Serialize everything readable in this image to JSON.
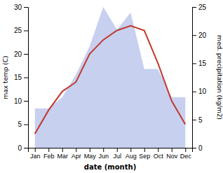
{
  "chart_data": {
    "type": "line",
    "xlabel": "date (month)",
    "ylabel": "max temp (C)",
    "y2label": "med. precipitation (kg/m2)",
    "categories": [
      "Jan",
      "Feb",
      "Mar",
      "Apr",
      "May",
      "Jun",
      "Jul",
      "Aug",
      "Sep",
      "Oct",
      "Nov",
      "Dec"
    ],
    "series": [
      {
        "type": "area",
        "axis": "y2",
        "color": "#c8d0f0",
        "values": [
          7,
          7,
          9,
          13,
          18,
          25,
          21,
          24,
          14,
          14,
          9,
          9
        ]
      },
      {
        "type": "line",
        "color": "#c0392b",
        "values": [
          3,
          8,
          12,
          14,
          20,
          23,
          25,
          26,
          25,
          18,
          10,
          5
        ]
      }
    ],
    "ylim": [
      0,
      30
    ],
    "yticks": [
      0,
      5,
      10,
      15,
      20,
      25,
      30
    ],
    "y2lim": [
      0,
      25
    ],
    "y2ticks": [
      0,
      5,
      10,
      15,
      20,
      25
    ],
    "grid": false
  }
}
